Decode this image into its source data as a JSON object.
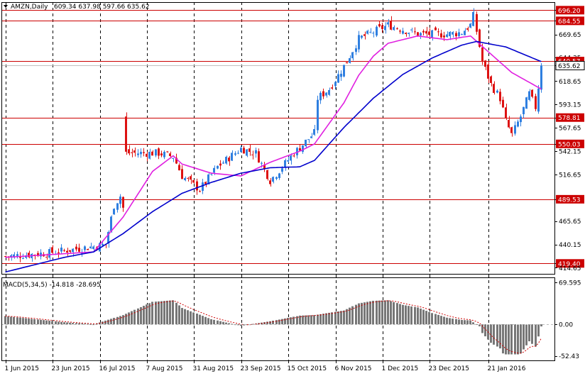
{
  "header": {
    "symbol_label": "AMZN,Daily",
    "ohlc_label": "609.34 637.98 597.66 635.62"
  },
  "macd_panel": {
    "label": "MACD(5,34,5) -14.818 -28.695"
  },
  "colors": {
    "bull": "#2f7fe0",
    "bear": "#dd1111",
    "sma_fast": "#e020e0",
    "sma_slow": "#0000cc",
    "hline": "#cc0000",
    "macd_hist": "#777777",
    "macd_signal": "#cc0000",
    "grid": "#000000"
  },
  "chart_data": [
    {
      "type": "candlestick",
      "title": "AMZN,Daily",
      "ylim": [
        408,
        705
      ],
      "y_ticks": [
        "696.20",
        "684.55",
        "669.65",
        "644.35",
        "640.57",
        "635.62",
        "618.65",
        "593.15",
        "578.81",
        "567.65",
        "550.03",
        "542.15",
        "516.65",
        "489.53",
        "465.65",
        "440.15",
        "419.40",
        "414.65"
      ],
      "price_lines": [
        {
          "value": 696.2,
          "label": "696.20"
        },
        {
          "value": 684.55,
          "label": "684.55"
        },
        {
          "value": 640.57,
          "label": "640.57"
        },
        {
          "value": 578.81,
          "label": "578.81"
        },
        {
          "value": 550.03,
          "label": "550.03"
        },
        {
          "value": 489.53,
          "label": "489.53"
        },
        {
          "value": 419.4,
          "label": "419.40"
        }
      ],
      "current_price": {
        "value": 635.62,
        "label": "635.62"
      },
      "x_labels": [
        "1 Jun 2015",
        "23 Jun 2015",
        "16 Jul 2015",
        "7 Aug 2015",
        "31 Aug 2015",
        "23 Sep 2015",
        "15 Oct 2015",
        "6 Nov 2015",
        "1 Dec 2015",
        "23 Dec 2015",
        "21 Jan 2016"
      ],
      "anchors": [
        [
          0,
          427
        ],
        [
          15,
          431
        ],
        [
          28,
          437
        ],
        [
          34,
          440
        ],
        [
          37,
          483
        ],
        [
          39,
          493
        ],
        [
          40,
          480
        ],
        [
          41,
          540
        ],
        [
          52,
          540
        ],
        [
          57,
          536
        ],
        [
          60,
          515
        ],
        [
          66,
          500
        ],
        [
          72,
          525
        ],
        [
          80,
          545
        ],
        [
          85,
          540
        ],
        [
          90,
          510
        ],
        [
          98,
          540
        ],
        [
          105,
          562
        ],
        [
          106,
          600
        ],
        [
          110,
          610
        ],
        [
          116,
          640
        ],
        [
          120,
          665
        ],
        [
          130,
          680
        ],
        [
          140,
          670
        ],
        [
          150,
          670
        ],
        [
          155,
          672
        ],
        [
          158,
          680
        ],
        [
          159,
          690
        ],
        [
          162,
          640
        ],
        [
          165,
          615
        ],
        [
          168,
          600
        ],
        [
          170,
          575
        ],
        [
          172,
          560
        ],
        [
          175,
          580
        ],
        [
          178,
          605
        ],
        [
          180,
          590
        ],
        [
          182,
          635
        ]
      ],
      "sma_fast_anchors": [
        [
          0,
          426
        ],
        [
          20,
          430
        ],
        [
          30,
          432
        ],
        [
          40,
          470
        ],
        [
          50,
          520
        ],
        [
          57,
          537
        ],
        [
          60,
          528
        ],
        [
          70,
          518
        ],
        [
          80,
          515
        ],
        [
          90,
          530
        ],
        [
          100,
          542
        ],
        [
          105,
          550
        ],
        [
          115,
          595
        ],
        [
          120,
          625
        ],
        [
          125,
          646
        ],
        [
          130,
          660
        ],
        [
          140,
          668
        ],
        [
          150,
          664
        ],
        [
          158,
          668
        ],
        [
          165,
          648
        ],
        [
          172,
          628
        ],
        [
          182,
          610
        ]
      ],
      "sma_slow_anchors": [
        [
          0,
          410
        ],
        [
          20,
          426
        ],
        [
          30,
          432
        ],
        [
          40,
          452
        ],
        [
          50,
          476
        ],
        [
          60,
          496
        ],
        [
          70,
          508
        ],
        [
          80,
          518
        ],
        [
          90,
          524
        ],
        [
          100,
          525
        ],
        [
          105,
          532
        ],
        [
          115,
          568
        ],
        [
          125,
          600
        ],
        [
          135,
          626
        ],
        [
          145,
          644
        ],
        [
          155,
          658
        ],
        [
          160,
          662
        ],
        [
          170,
          656
        ],
        [
          182,
          640
        ]
      ],
      "series": [
        {
          "name": "AMZN,Daily",
          "color": "#2f7fe0"
        },
        {
          "name": "",
          "color": "#e020e0"
        },
        {
          "name": "",
          "color": "#0000cc"
        }
      ]
    },
    {
      "type": "bar",
      "title": "MACD(5,34,5) -14.818 -28.695",
      "ylim": [
        -60,
        78
      ],
      "y_ticks": [
        "69.595",
        "0.00",
        "-52.43"
      ],
      "series": [
        {
          "name": "MACD",
          "color": "#777777"
        },
        {
          "name": "Signal",
          "color": "#cc0000"
        }
      ]
    }
  ]
}
